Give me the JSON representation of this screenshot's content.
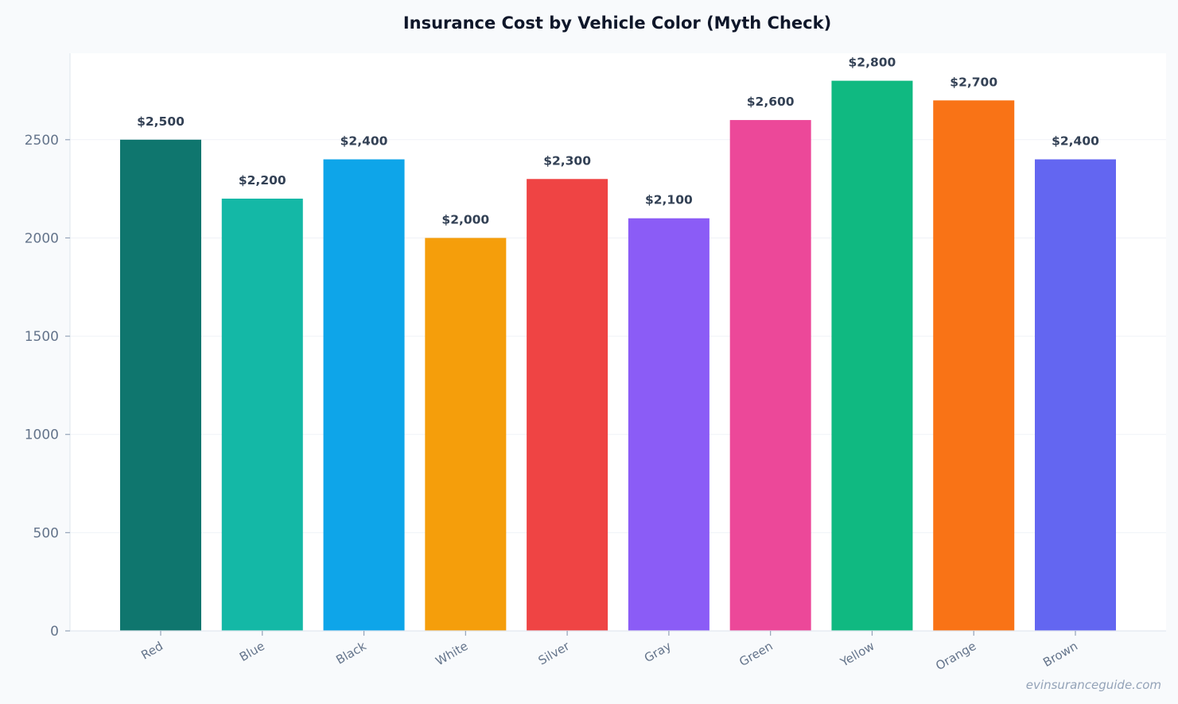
{
  "chart_data": {
    "type": "bar",
    "title": "Insurance Cost by Vehicle Color (Myth Check)",
    "xlabel": "",
    "ylabel": "",
    "categories": [
      "Red",
      "Blue",
      "Black",
      "White",
      "Silver",
      "Gray",
      "Green",
      "Yellow",
      "Orange",
      "Brown"
    ],
    "values": [
      2500,
      2200,
      2400,
      2000,
      2300,
      2100,
      2600,
      2800,
      2700,
      2400
    ],
    "value_labels": [
      "$2,500",
      "$2,200",
      "$2,400",
      "$2,000",
      "$2,300",
      "$2,100",
      "$2,600",
      "$2,800",
      "$2,700",
      "$2,400"
    ],
    "bar_colors": [
      "#0f766e",
      "#14b8a6",
      "#0ea5e9",
      "#f59e0b",
      "#ef4444",
      "#8b5cf6",
      "#ec4899",
      "#10b981",
      "#f97316",
      "#6366f1"
    ],
    "yticks": [
      0,
      500,
      1000,
      1500,
      2000,
      2500
    ],
    "ytick_labels": [
      "0",
      "500",
      "1000",
      "1500",
      "2000",
      "2500"
    ],
    "ylim": [
      0,
      2940
    ],
    "grid": true,
    "legend": "none"
  },
  "watermark": "evinsuranceguide.com"
}
